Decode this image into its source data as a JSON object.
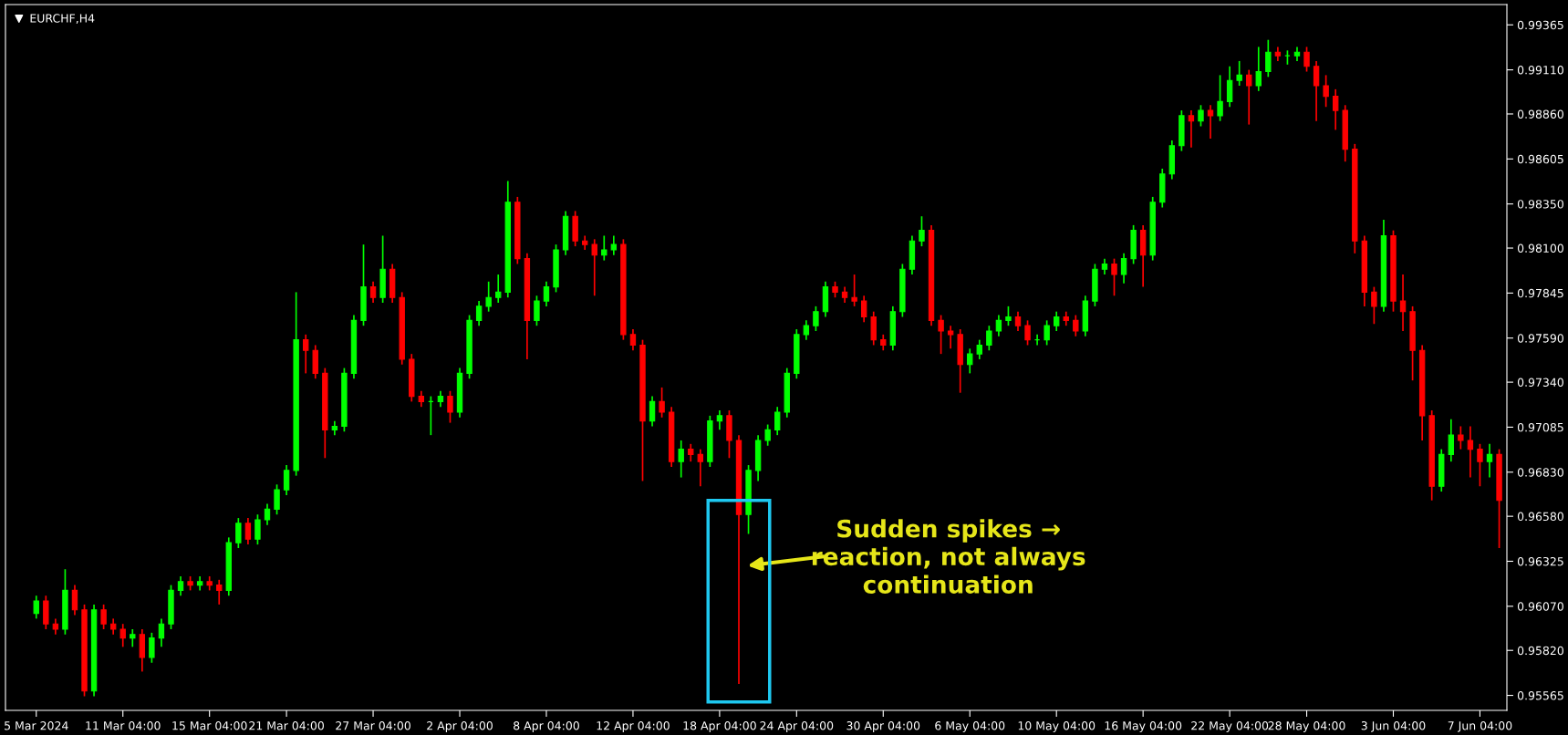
{
  "chart_data": {
    "type": "candlestick",
    "title": "EURCHF,H4",
    "categories": [
      "5 Mar 2024",
      null,
      null,
      null,
      null,
      null,
      null,
      null,
      null,
      "11 Mar 04:00",
      null,
      null,
      null,
      null,
      null,
      null,
      null,
      null,
      "15 Mar 04:00",
      null,
      null,
      null,
      null,
      null,
      null,
      null,
      "21 Mar 04:00",
      null,
      null,
      null,
      null,
      null,
      null,
      null,
      null,
      "27 Mar 04:00",
      null,
      null,
      null,
      null,
      null,
      null,
      null,
      null,
      "2 Apr 04:00",
      null,
      null,
      null,
      null,
      null,
      null,
      null,
      null,
      "8 Apr 04:00",
      null,
      null,
      null,
      null,
      null,
      null,
      null,
      null,
      "12 Apr 04:00",
      null,
      null,
      null,
      null,
      null,
      null,
      null,
      null,
      "18 Apr 04:00",
      null,
      null,
      null,
      null,
      null,
      null,
      null,
      "24 Apr 04:00",
      null,
      null,
      null,
      null,
      null,
      null,
      null,
      null,
      "30 Apr 04:00",
      null,
      null,
      null,
      null,
      null,
      null,
      null,
      null,
      "6 May 04:00",
      null,
      null,
      null,
      null,
      null,
      null,
      null,
      null,
      "10 May 04:00",
      null,
      null,
      null,
      null,
      null,
      null,
      null,
      null,
      "16 May 04:00",
      null,
      null,
      null,
      null,
      null,
      null,
      null,
      null,
      "22 May 04:00",
      null,
      null,
      null,
      null,
      null,
      null,
      null,
      "28 May 04:00",
      null,
      null,
      null,
      null,
      null,
      null,
      null,
      null,
      "3 Jun 04:00",
      null,
      null,
      null,
      null,
      null,
      null,
      null,
      null,
      "7 Jun 04:00",
      null,
      null
    ],
    "ohlc": [
      [
        0.9603,
        0.9613,
        0.96,
        0.961
      ],
      [
        0.961,
        0.9613,
        0.9594,
        0.9597
      ],
      [
        0.9597,
        0.96,
        0.9591,
        0.9594
      ],
      [
        0.9594,
        0.9628,
        0.9591,
        0.9616
      ],
      [
        0.9616,
        0.9619,
        0.9602,
        0.9605
      ],
      [
        0.9605,
        0.9608,
        0.9556,
        0.9559
      ],
      [
        0.9559,
        0.9608,
        0.9556,
        0.9605
      ],
      [
        0.9605,
        0.9608,
        0.9594,
        0.9597
      ],
      [
        0.9597,
        0.96,
        0.9591,
        0.9594
      ],
      [
        0.9594,
        0.9597,
        0.9584,
        0.9589
      ],
      [
        0.9589,
        0.9594,
        0.9584,
        0.9591
      ],
      [
        0.9591,
        0.9594,
        0.957,
        0.9578
      ],
      [
        0.9578,
        0.9592,
        0.9575,
        0.9589
      ],
      [
        0.9589,
        0.96,
        0.9584,
        0.9597
      ],
      [
        0.9597,
        0.9619,
        0.9594,
        0.9616
      ],
      [
        0.9616,
        0.9624,
        0.9613,
        0.9621
      ],
      [
        0.9621,
        0.9624,
        0.9616,
        0.9619
      ],
      [
        0.9619,
        0.9624,
        0.9616,
        0.9621
      ],
      [
        0.9621,
        0.9624,
        0.9616,
        0.9619
      ],
      [
        0.9619,
        0.9622,
        0.9608,
        0.9616
      ],
      [
        0.9616,
        0.9646,
        0.9613,
        0.9643
      ],
      [
        0.9643,
        0.9657,
        0.964,
        0.9654
      ],
      [
        0.9654,
        0.9657,
        0.9642,
        0.9645
      ],
      [
        0.9645,
        0.9659,
        0.9642,
        0.9656
      ],
      [
        0.9656,
        0.9665,
        0.9653,
        0.9662
      ],
      [
        0.9662,
        0.9676,
        0.9659,
        0.9673
      ],
      [
        0.9673,
        0.9687,
        0.967,
        0.9684
      ],
      [
        0.9684,
        0.9785,
        0.9681,
        0.9758
      ],
      [
        0.9758,
        0.9761,
        0.9739,
        0.9752
      ],
      [
        0.9752,
        0.9755,
        0.9736,
        0.9739
      ],
      [
        0.9739,
        0.9742,
        0.9691,
        0.9707
      ],
      [
        0.9707,
        0.9712,
        0.9704,
        0.9709
      ],
      [
        0.9709,
        0.9742,
        0.9706,
        0.9739
      ],
      [
        0.9739,
        0.9772,
        0.9736,
        0.9769
      ],
      [
        0.9769,
        0.9812,
        0.9766,
        0.9788
      ],
      [
        0.9788,
        0.9791,
        0.9779,
        0.9782
      ],
      [
        0.9782,
        0.9817,
        0.9779,
        0.9798
      ],
      [
        0.9798,
        0.9801,
        0.9779,
        0.9782
      ],
      [
        0.9782,
        0.9785,
        0.9744,
        0.9747
      ],
      [
        0.9747,
        0.975,
        0.9723,
        0.9726
      ],
      [
        0.9726,
        0.9729,
        0.972,
        0.9723
      ],
      [
        0.9723,
        0.9726,
        0.9704,
        0.9723
      ],
      [
        0.9723,
        0.9729,
        0.972,
        0.9726
      ],
      [
        0.9726,
        0.9729,
        0.9711,
        0.9717
      ],
      [
        0.9717,
        0.9742,
        0.9714,
        0.9739
      ],
      [
        0.9739,
        0.9772,
        0.9736,
        0.9769
      ],
      [
        0.9769,
        0.978,
        0.9766,
        0.9777
      ],
      [
        0.9777,
        0.9791,
        0.9774,
        0.9782
      ],
      [
        0.9782,
        0.9795,
        0.9779,
        0.9785
      ],
      [
        0.9785,
        0.9848,
        0.9782,
        0.9836
      ],
      [
        0.9836,
        0.9839,
        0.9801,
        0.9804
      ],
      [
        0.9804,
        0.9807,
        0.9747,
        0.9769
      ],
      [
        0.9769,
        0.9783,
        0.9766,
        0.978
      ],
      [
        0.978,
        0.9791,
        0.9777,
        0.9788
      ],
      [
        0.9788,
        0.9812,
        0.9785,
        0.9809
      ],
      [
        0.9809,
        0.9831,
        0.9806,
        0.9828
      ],
      [
        0.9828,
        0.9831,
        0.9811,
        0.9814
      ],
      [
        0.9814,
        0.9817,
        0.9809,
        0.9812
      ],
      [
        0.9812,
        0.9815,
        0.9783,
        0.9806
      ],
      [
        0.9806,
        0.9817,
        0.9803,
        0.9809
      ],
      [
        0.9809,
        0.9817,
        0.9806,
        0.9812
      ],
      [
        0.9812,
        0.9815,
        0.9758,
        0.9761
      ],
      [
        0.9761,
        0.9764,
        0.9752,
        0.9755
      ],
      [
        0.9755,
        0.9758,
        0.9678,
        0.9712
      ],
      [
        0.9712,
        0.9726,
        0.9709,
        0.9723
      ],
      [
        0.9723,
        0.9731,
        0.9714,
        0.9717
      ],
      [
        0.9717,
        0.972,
        0.9686,
        0.9689
      ],
      [
        0.9689,
        0.9701,
        0.968,
        0.9696
      ],
      [
        0.9696,
        0.9699,
        0.9689,
        0.9693
      ],
      [
        0.9693,
        0.9696,
        0.9675,
        0.9689
      ],
      [
        0.9689,
        0.9715,
        0.9686,
        0.9712
      ],
      [
        0.9712,
        0.9718,
        0.9707,
        0.9715
      ],
      [
        0.9715,
        0.9718,
        0.9691,
        0.9701
      ],
      [
        0.9701,
        0.9704,
        0.9563,
        0.9659
      ],
      [
        0.9659,
        0.9687,
        0.9648,
        0.9684
      ],
      [
        0.9684,
        0.9704,
        0.9678,
        0.9701
      ],
      [
        0.9701,
        0.971,
        0.9698,
        0.9707
      ],
      [
        0.9707,
        0.972,
        0.9704,
        0.9717
      ],
      [
        0.9717,
        0.9742,
        0.9714,
        0.9739
      ],
      [
        0.9739,
        0.9764,
        0.9736,
        0.9761
      ],
      [
        0.9761,
        0.9769,
        0.9758,
        0.9766
      ],
      [
        0.9766,
        0.9777,
        0.9763,
        0.9774
      ],
      [
        0.9774,
        0.9791,
        0.9771,
        0.9788
      ],
      [
        0.9788,
        0.9791,
        0.9782,
        0.9785
      ],
      [
        0.9785,
        0.9788,
        0.9779,
        0.9782
      ],
      [
        0.9782,
        0.9795,
        0.9777,
        0.978
      ],
      [
        0.978,
        0.9783,
        0.9768,
        0.9771
      ],
      [
        0.9771,
        0.9774,
        0.9755,
        0.9758
      ],
      [
        0.9758,
        0.9761,
        0.9752,
        0.9755
      ],
      [
        0.9755,
        0.9777,
        0.9752,
        0.9774
      ],
      [
        0.9774,
        0.9801,
        0.9771,
        0.9798
      ],
      [
        0.9798,
        0.9817,
        0.9795,
        0.9814
      ],
      [
        0.9814,
        0.9828,
        0.9811,
        0.982
      ],
      [
        0.982,
        0.9823,
        0.9766,
        0.9769
      ],
      [
        0.9769,
        0.9772,
        0.975,
        0.9763
      ],
      [
        0.9763,
        0.9766,
        0.9753,
        0.9761
      ],
      [
        0.9761,
        0.9764,
        0.9728,
        0.9744
      ],
      [
        0.9744,
        0.9753,
        0.9739,
        0.975
      ],
      [
        0.975,
        0.9758,
        0.9747,
        0.9755
      ],
      [
        0.9755,
        0.9766,
        0.9752,
        0.9763
      ],
      [
        0.9763,
        0.9772,
        0.976,
        0.9769
      ],
      [
        0.9769,
        0.9777,
        0.9766,
        0.9771
      ],
      [
        0.9771,
        0.9774,
        0.9763,
        0.9766
      ],
      [
        0.9766,
        0.9769,
        0.9755,
        0.9758
      ],
      [
        0.9758,
        0.9761,
        0.9755,
        0.9758
      ],
      [
        0.9758,
        0.9769,
        0.9755,
        0.9766
      ],
      [
        0.9766,
        0.9774,
        0.9763,
        0.9771
      ],
      [
        0.9771,
        0.9774,
        0.9766,
        0.9769
      ],
      [
        0.9769,
        0.9772,
        0.976,
        0.9763
      ],
      [
        0.9763,
        0.9783,
        0.976,
        0.978
      ],
      [
        0.978,
        0.9801,
        0.9777,
        0.9798
      ],
      [
        0.9798,
        0.9804,
        0.9795,
        0.9801
      ],
      [
        0.9801,
        0.9804,
        0.9783,
        0.9795
      ],
      [
        0.9795,
        0.9807,
        0.979,
        0.9804
      ],
      [
        0.9804,
        0.9823,
        0.9801,
        0.982
      ],
      [
        0.982,
        0.9823,
        0.9788,
        0.9806
      ],
      [
        0.9806,
        0.9839,
        0.9803,
        0.9836
      ],
      [
        0.9836,
        0.9855,
        0.9833,
        0.9852
      ],
      [
        0.9852,
        0.9871,
        0.9849,
        0.9868
      ],
      [
        0.9868,
        0.9888,
        0.9865,
        0.9885
      ],
      [
        0.9885,
        0.9888,
        0.9867,
        0.9882
      ],
      [
        0.9882,
        0.9891,
        0.9879,
        0.9888
      ],
      [
        0.9888,
        0.9891,
        0.9872,
        0.9885
      ],
      [
        0.9885,
        0.9908,
        0.9882,
        0.9893
      ],
      [
        0.9893,
        0.9913,
        0.989,
        0.9905
      ],
      [
        0.9905,
        0.9916,
        0.9902,
        0.9908
      ],
      [
        0.9908,
        0.9911,
        0.988,
        0.9902
      ],
      [
        0.9902,
        0.9924,
        0.9899,
        0.991
      ],
      [
        0.991,
        0.9928,
        0.9907,
        0.9921
      ],
      [
        0.9921,
        0.9924,
        0.9916,
        0.9919
      ],
      [
        0.9919,
        0.9922,
        0.9914,
        0.9919
      ],
      [
        0.9919,
        0.9924,
        0.9916,
        0.9921
      ],
      [
        0.9921,
        0.9924,
        0.991,
        0.9913
      ],
      [
        0.9913,
        0.9916,
        0.9882,
        0.9902
      ],
      [
        0.9902,
        0.9908,
        0.989,
        0.9896
      ],
      [
        0.9896,
        0.99,
        0.9877,
        0.9888
      ],
      [
        0.9888,
        0.9891,
        0.9859,
        0.9866
      ],
      [
        0.9866,
        0.9869,
        0.9807,
        0.9814
      ],
      [
        0.9814,
        0.9817,
        0.9777,
        0.9785
      ],
      [
        0.9785,
        0.9788,
        0.9767,
        0.9777
      ],
      [
        0.9777,
        0.9826,
        0.9774,
        0.9817
      ],
      [
        0.9817,
        0.982,
        0.9774,
        0.978
      ],
      [
        0.978,
        0.9795,
        0.9763,
        0.9774
      ],
      [
        0.9774,
        0.9777,
        0.9735,
        0.9752
      ],
      [
        0.9752,
        0.9755,
        0.9701,
        0.9715
      ],
      [
        0.9715,
        0.9718,
        0.9667,
        0.9675
      ],
      [
        0.9675,
        0.9696,
        0.9672,
        0.9693
      ],
      [
        0.9693,
        0.9713,
        0.9689,
        0.9704
      ],
      [
        0.9704,
        0.9709,
        0.9696,
        0.9701
      ],
      [
        0.9701,
        0.9709,
        0.968,
        0.9696
      ],
      [
        0.9696,
        0.9699,
        0.9675,
        0.9689
      ],
      [
        0.9689,
        0.9699,
        0.968,
        0.9693
      ],
      [
        0.9693,
        0.9696,
        0.964,
        0.9667
      ]
    ],
    "ylim": [
      0.9548,
      0.9948
    ],
    "yticks": [
      0.99365,
      {
        "value": 0.9911,
        "label": "0.99110"
      },
      {
        "value": 0.9886,
        "label": "0.98860"
      },
      0.98605,
      {
        "value": 0.9835,
        "label": "0.98350"
      },
      {
        "value": 0.981,
        "label": "0.98100"
      },
      0.97845,
      {
        "value": 0.9759,
        "label": "0.97590"
      },
      {
        "value": 0.9734,
        "label": "0.97340"
      },
      0.97085,
      {
        "value": 0.9683,
        "label": "0.96830"
      },
      {
        "value": 0.9658,
        "label": "0.96580"
      },
      0.96325,
      {
        "value": 0.9607,
        "label": "0.96070"
      },
      {
        "value": 0.9582,
        "label": "0.95820"
      },
      0.95565
    ],
    "annotations": [
      "Sudden spikes →\nreaction, not always\ncontinuation"
    ]
  }
}
